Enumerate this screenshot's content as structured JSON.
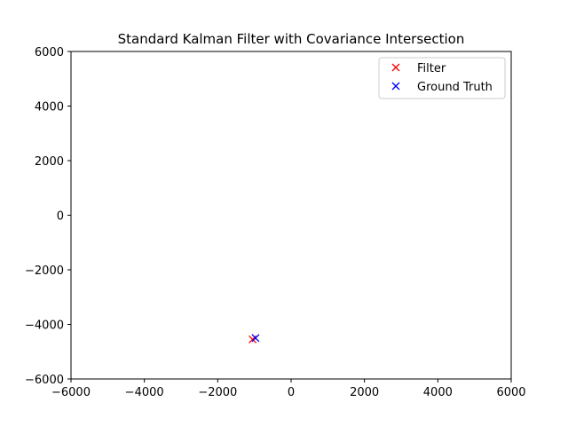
{
  "chart_data": {
    "type": "scatter",
    "title": "Standard Kalman Filter with Covariance Intersection",
    "xlabel": "",
    "ylabel": "",
    "xlim": [
      -6000,
      6000
    ],
    "ylim": [
      -6000,
      6000
    ],
    "xticks": [
      -6000,
      -4000,
      -2000,
      0,
      2000,
      4000,
      6000
    ],
    "yticks": [
      -6000,
      -4000,
      -2000,
      0,
      2000,
      4000,
      6000
    ],
    "xtick_labels": [
      "−6000",
      "−4000",
      "−2000",
      "0",
      "2000",
      "4000",
      "6000"
    ],
    "ytick_labels": [
      "−6000",
      "−4000",
      "−2000",
      "0",
      "2000",
      "4000",
      "6000"
    ],
    "grid": false,
    "legend_position": "upper right",
    "series": [
      {
        "name": "Filter",
        "marker": "x",
        "color": "#ff0000",
        "points": [
          [
            -1050,
            -4550
          ]
        ]
      },
      {
        "name": "Ground Truth",
        "marker": "x",
        "color": "#0000ff",
        "points": [
          [
            -970,
            -4500
          ]
        ]
      }
    ]
  }
}
